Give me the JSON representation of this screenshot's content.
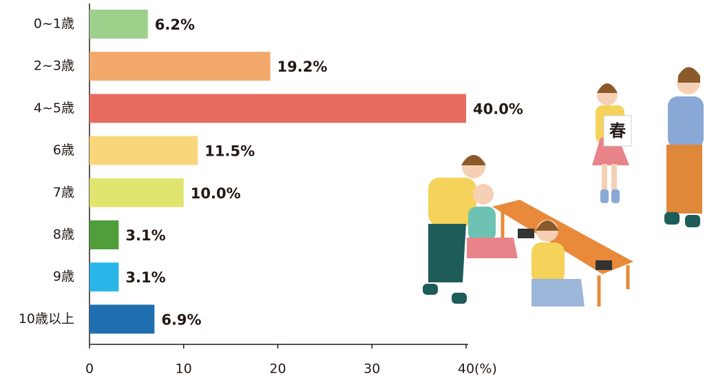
{
  "chart_data": {
    "type": "bar",
    "orientation": "horizontal",
    "categories": [
      "0~1歳",
      "2~3歳",
      "4~5歳",
      "6歳",
      "7歳",
      "8歳",
      "9歳",
      "10歳以上"
    ],
    "values": [
      6.2,
      19.2,
      40.0,
      11.5,
      10.0,
      3.1,
      3.1,
      6.9
    ],
    "value_labels": [
      "6.2%",
      "19.2%",
      "40.0%",
      "11.5%",
      "10.0%",
      "3.1%",
      "3.1%",
      "6.9%"
    ],
    "colors": [
      "#9dd08a",
      "#f2a96b",
      "#e86c5e",
      "#f8d77a",
      "#dfe56f",
      "#4f9e3a",
      "#29b5e8",
      "#1f6fb0"
    ],
    "xlim": [
      0,
      40
    ],
    "xticks": [
      0,
      10,
      20,
      30,
      40
    ],
    "xlabel": "(%)"
  },
  "illustration": {
    "sign_text": "春"
  }
}
